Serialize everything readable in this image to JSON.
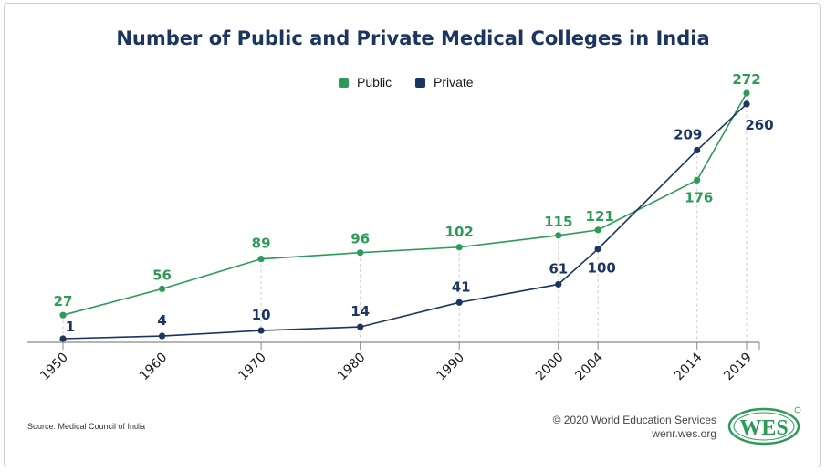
{
  "chart_data": {
    "type": "line",
    "title": "Number of Public and Private Medical Colleges in India",
    "x": [
      "1950",
      "1960",
      "1970",
      "1980",
      "1990",
      "2000",
      "2004",
      "2014",
      "2019"
    ],
    "x_numeric": [
      1950,
      1960,
      1970,
      1980,
      1990,
      2000,
      2004,
      2014,
      2019
    ],
    "series": [
      {
        "name": "Public",
        "color": "#2e9a57",
        "values": [
          27,
          56,
          89,
          96,
          102,
          115,
          121,
          176,
          272
        ]
      },
      {
        "name": "Private",
        "color": "#1c3560",
        "values": [
          1,
          4,
          10,
          14,
          41,
          61,
          100,
          209,
          260
        ]
      }
    ],
    "ylim": [
      0,
      280
    ],
    "grid": false,
    "legend_position": "top-center"
  },
  "footer": {
    "source": "Source: Medical Council of India",
    "copyright": "© 2020 World Education Services",
    "url": "wenr.wes.org",
    "logo_text": "WES"
  },
  "colors": {
    "title": "#1c3560",
    "public": "#2e9a57",
    "private": "#1c3560",
    "axis": "#888888"
  }
}
